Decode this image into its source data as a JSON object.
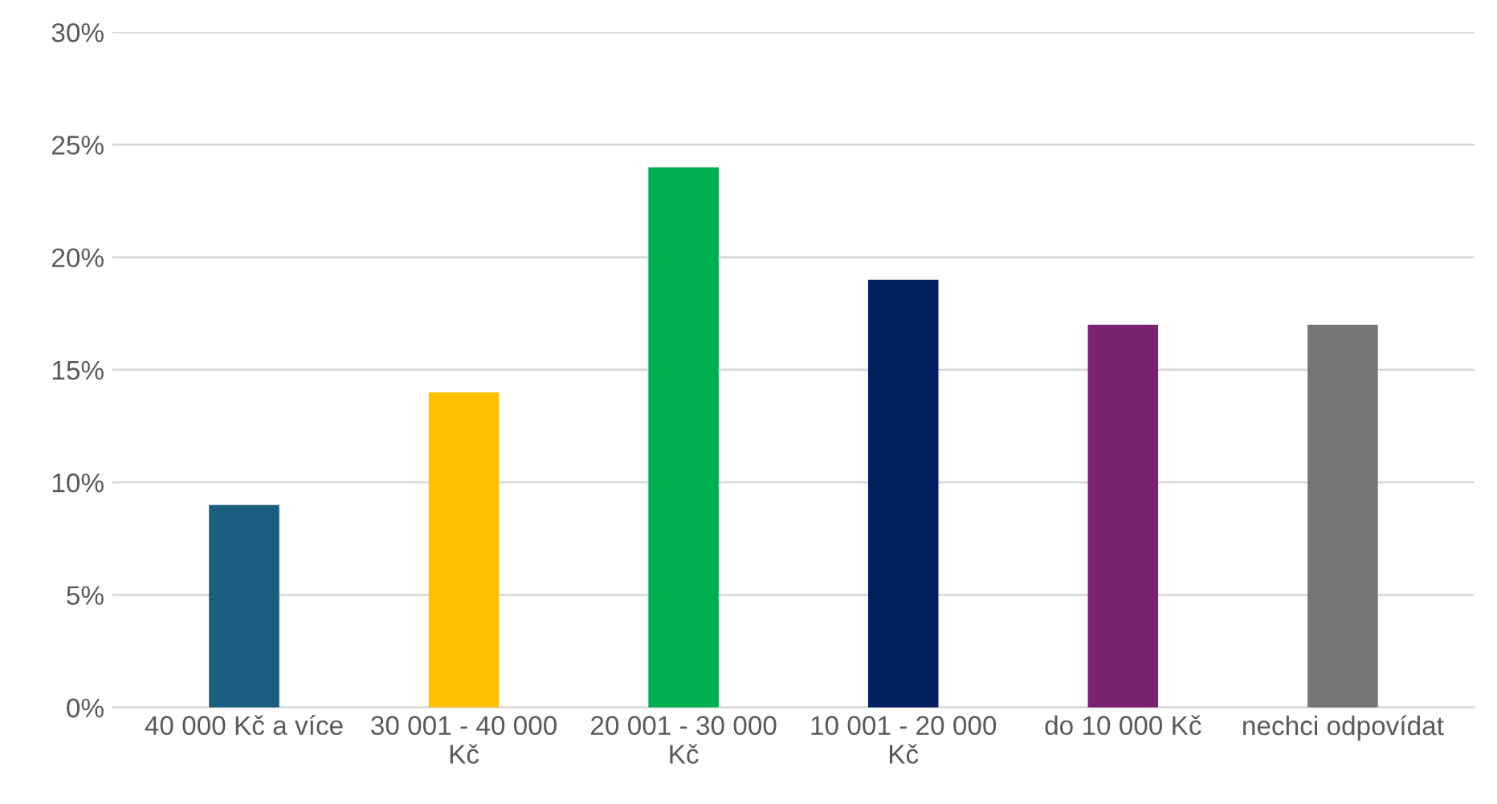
{
  "chart_data": {
    "type": "bar",
    "categories": [
      "40 000 Kč a více",
      "30 001 - 40 000 Kč",
      "20 001 - 30 000 Kč",
      "10 001 - 20 000 Kč",
      "do 10 000 Kč",
      "nechci odpovídat"
    ],
    "values": [
      9,
      14,
      24,
      19,
      17,
      17
    ],
    "colors": [
      "#1a5e80",
      "#ffc000",
      "#00b050",
      "#002060",
      "#7a2270",
      "#757575"
    ],
    "ylim": [
      0,
      30
    ],
    "yticks": [
      {
        "value": 0,
        "label": "0%"
      },
      {
        "value": 5,
        "label": "5%"
      },
      {
        "value": 10,
        "label": "10%"
      },
      {
        "value": 15,
        "label": "15%"
      },
      {
        "value": 20,
        "label": "20%"
      },
      {
        "value": 25,
        "label": "25%"
      },
      {
        "value": 30,
        "label": "30%"
      }
    ],
    "grid": "y"
  }
}
